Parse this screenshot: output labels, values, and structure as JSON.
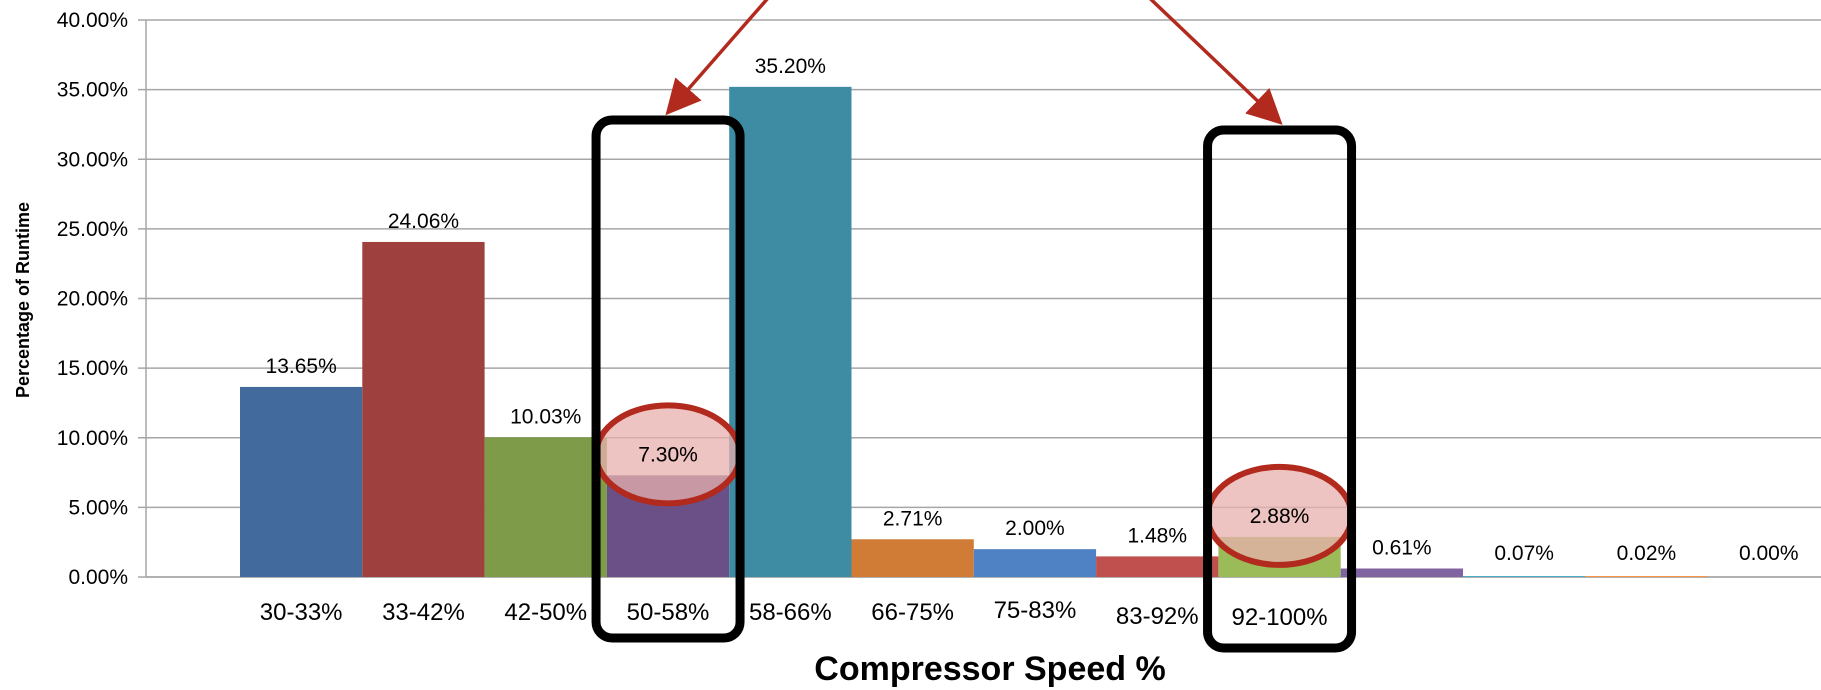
{
  "chart_data": {
    "type": "bar",
    "title": "",
    "xlabel": "Compressor Speed %",
    "ylabel": "Percentage of Runtime",
    "ylim": [
      0,
      40
    ],
    "ytick_labels": [
      "0.00%",
      "5.00%",
      "10.00%",
      "15.00%",
      "20.00%",
      "25.00%",
      "30.00%",
      "35.00%",
      "40.00%"
    ],
    "grid": true,
    "legend": "none",
    "categories": [
      "30-33%",
      "33-42%",
      "42-50%",
      "50-58%",
      "58-66%",
      "66-75%",
      "75-83%",
      "83-92%",
      "92-100%",
      "",
      "",
      "",
      ""
    ],
    "values": [
      13.65,
      24.06,
      10.03,
      7.3,
      35.2,
      2.71,
      2.0,
      1.48,
      2.88,
      0.61,
      0.07,
      0.02,
      0.0
    ],
    "data_labels": [
      "13.65%",
      "24.06%",
      "10.03%",
      "7.30%",
      "35.20%",
      "2.71%",
      "2.00%",
      "1.48%",
      "2.88%",
      "0.61%",
      "0.07%",
      "0.02%",
      "0.00%"
    ],
    "colors": [
      "#426A9C",
      "#9E403E",
      "#7E9B49",
      "#6A5087",
      "#3D8CA3",
      "#D07C36",
      "#4F82C4",
      "#C0504D",
      "#9BBB59",
      "#8064A2",
      "#4BACC6",
      "#F79646",
      "#2C4D75"
    ],
    "highlighted_categories": [
      "50-58%",
      "92-100%"
    ],
    "annotation_colors": {
      "box": "#000000",
      "circle": "#B22A1E",
      "circle_fill": "#E8B0AE",
      "arrow": "#B22A1E"
    }
  }
}
